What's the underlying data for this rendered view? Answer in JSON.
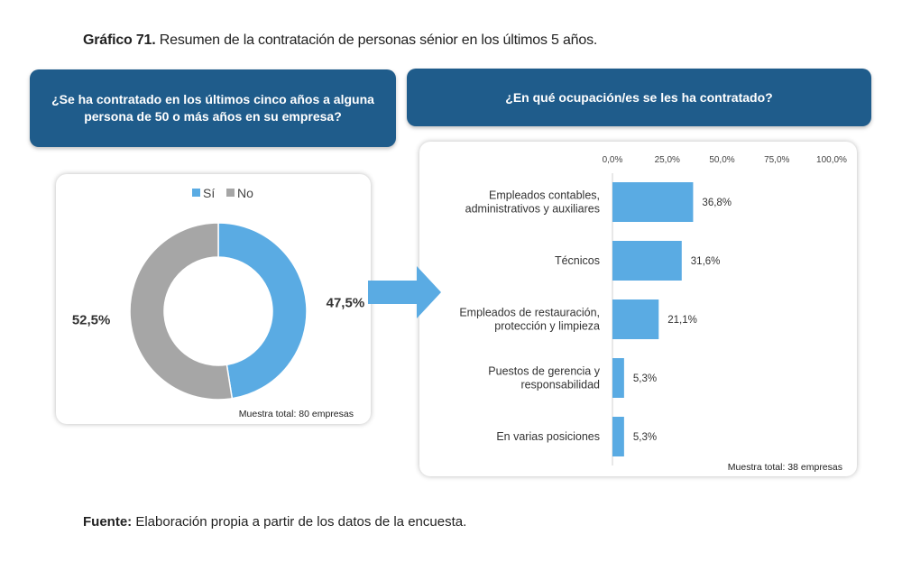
{
  "figure": {
    "label": "Gráfico 71.",
    "title": "Resumen de la contratación de personas sénior en los últimos 5 años."
  },
  "source": {
    "label": "Fuente:",
    "text": "Elaboración propia a partir de los datos de la encuesta."
  },
  "banners": {
    "left_line1": "¿Se ha contratado en los últimos cinco años a alguna",
    "left_line2": "persona de 50 o más años en su empresa?",
    "right": "¿En qué ocupación/es se les ha contratado?"
  },
  "chart_data": [
    {
      "type": "pie",
      "donut": true,
      "legend_position": "top",
      "labels": [
        "Sí",
        "No"
      ],
      "values": [
        47.5,
        52.5
      ],
      "value_labels": [
        "47,5%",
        "52,5%"
      ],
      "colors": [
        "#5aabe3",
        "#a6a6a6"
      ],
      "note": "Muestra total: 80 empresas"
    },
    {
      "type": "bar",
      "orientation": "horizontal",
      "categories": [
        [
          "Empleados contables,",
          "administrativos y auxiliares"
        ],
        [
          "Técnicos"
        ],
        [
          "Empleados de restauración,",
          "protección y limpieza"
        ],
        [
          "Puestos de gerencia y",
          "responsabilidad"
        ],
        [
          "En varias posiciones"
        ]
      ],
      "values": [
        36.8,
        31.6,
        21.1,
        5.3,
        5.3
      ],
      "value_labels": [
        "36,8%",
        "31,6%",
        "21,1%",
        "5,3%",
        "5,3%"
      ],
      "xlim": [
        0,
        100
      ],
      "xticks": [
        0,
        25,
        50,
        75,
        100
      ],
      "xtick_labels": [
        "0,0%",
        "25,0%",
        "50,0%",
        "75,0%",
        "100,0%"
      ],
      "grid": false,
      "color": "#5aabe3",
      "note": "Muestra total: 38 empresas"
    }
  ],
  "colors": {
    "banner": "#1f5c8b",
    "arrow": "#5aabe3"
  }
}
